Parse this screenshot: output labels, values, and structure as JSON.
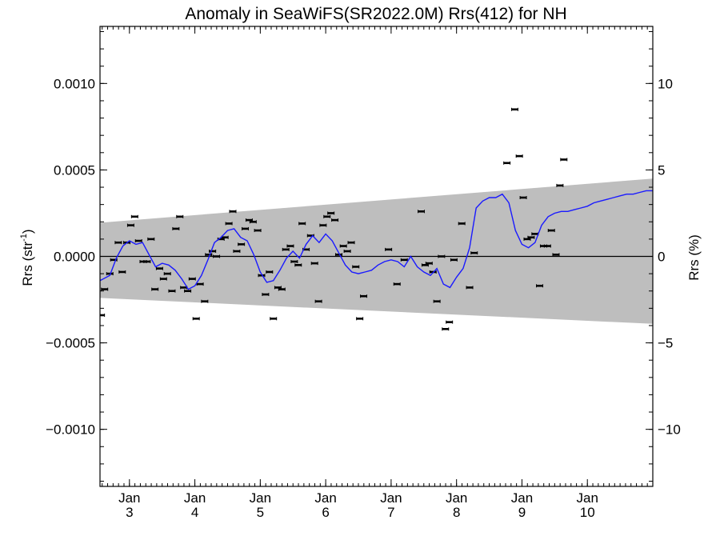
{
  "chart_data": {
    "type": "scatter",
    "title": "Anomaly in SeaWiFS(SR2022.0M) Rrs(412) for NH",
    "ylabel_left": "Rrs (str",
    "ylabel_left_sup": "-1",
    "ylabel_left_end": ")",
    "ylabel_right": "Rrs (%)",
    "x_ticks": [
      {
        "month": "Jan",
        "year": "3",
        "x": 3
      },
      {
        "month": "Jan",
        "year": "4",
        "x": 4
      },
      {
        "month": "Jan",
        "year": "5",
        "x": 5
      },
      {
        "month": "Jan",
        "year": "6",
        "x": 6
      },
      {
        "month": "Jan",
        "year": "7",
        "x": 7
      },
      {
        "month": "Jan",
        "year": "8",
        "x": 8
      },
      {
        "month": "Jan",
        "year": "9",
        "x": 9
      },
      {
        "month": "Jan",
        "year": "10",
        "x": 10
      }
    ],
    "xlim": [
      2.55,
      11.0
    ],
    "ylim_left": [
      -0.00133,
      0.00133
    ],
    "ylim_right": [
      -13.3,
      13.3
    ],
    "y_ticks_left": [
      {
        "v": 0.001,
        "label": "0.0010"
      },
      {
        "v": 0.0005,
        "label": "0.0005"
      },
      {
        "v": 0.0,
        "label": "0.0000"
      },
      {
        "v": -0.0005,
        "label": "−0.0005"
      },
      {
        "v": -0.001,
        "label": "−0.0010"
      }
    ],
    "y_ticks_right": [
      {
        "v": 10,
        "label": "10"
      },
      {
        "v": 5,
        "label": "5"
      },
      {
        "v": 0,
        "label": "0"
      },
      {
        "v": -5,
        "label": "−5"
      },
      {
        "v": -10,
        "label": "−10"
      }
    ],
    "band": {
      "color": "#bebebe",
      "upper": [
        [
          2.55,
          0.000195
        ],
        [
          11.0,
          0.00045
        ]
      ],
      "lower": [
        [
          2.55,
          -0.00024
        ],
        [
          11.0,
          -0.00039
        ]
      ]
    },
    "zero_line": 0,
    "series": [
      {
        "kind": "points",
        "color": "#000000",
        "points": [
          [
            2.57,
            -0.00034
          ],
          [
            2.62,
            -0.00019
          ],
          [
            2.7,
            -0.0001
          ],
          [
            2.76,
            -2e-05
          ],
          [
            2.83,
            8e-05
          ],
          [
            2.89,
            -9e-05
          ],
          [
            2.96,
            8e-05
          ],
          [
            3.02,
            0.00018
          ],
          [
            3.08,
            0.00023
          ],
          [
            3.14,
            9e-05
          ],
          [
            3.21,
            -3e-05
          ],
          [
            3.27,
            -3e-05
          ],
          [
            3.33,
            0.0001
          ],
          [
            3.39,
            -0.00019
          ],
          [
            3.46,
            -7e-05
          ],
          [
            3.52,
            -0.00013
          ],
          [
            3.58,
            -0.0001
          ],
          [
            3.65,
            -0.0002
          ],
          [
            3.71,
            0.00016
          ],
          [
            3.77,
            0.00023
          ],
          [
            3.83,
            -0.00018
          ],
          [
            3.89,
            -0.0002
          ],
          [
            3.96,
            -0.00013
          ],
          [
            4.02,
            -0.00036
          ],
          [
            4.08,
            -0.00016
          ],
          [
            4.15,
            -0.00026
          ],
          [
            4.21,
            1e-05
          ],
          [
            4.27,
            3e-05
          ],
          [
            4.33,
            0.0
          ],
          [
            4.4,
            0.0001
          ],
          [
            4.46,
            0.00011
          ],
          [
            4.52,
            0.00019
          ],
          [
            4.58,
            0.00026
          ],
          [
            4.64,
            3e-05
          ],
          [
            4.71,
            7e-05
          ],
          [
            4.77,
            0.00016
          ],
          [
            4.83,
            0.00021
          ],
          [
            4.89,
            0.0002
          ],
          [
            4.96,
            0.00015
          ],
          [
            5.02,
            -0.00011
          ],
          [
            5.08,
            -0.00022
          ],
          [
            5.14,
            -9e-05
          ],
          [
            5.2,
            -0.00036
          ],
          [
            5.27,
            -0.00018
          ],
          [
            5.33,
            -0.00019
          ],
          [
            5.39,
            4e-05
          ],
          [
            5.46,
            6e-05
          ],
          [
            5.52,
            -3e-05
          ],
          [
            5.58,
            -5e-05
          ],
          [
            5.64,
            0.00019
          ],
          [
            5.7,
            4e-05
          ],
          [
            5.77,
            0.00012
          ],
          [
            5.83,
            -4e-05
          ],
          [
            5.89,
            -0.00026
          ],
          [
            5.96,
            0.00018
          ],
          [
            6.02,
            0.00023
          ],
          [
            6.08,
            0.00025
          ],
          [
            6.14,
            0.00021
          ],
          [
            6.2,
            1e-05
          ],
          [
            6.27,
            6e-05
          ],
          [
            6.33,
            3e-05
          ],
          [
            6.39,
            8e-05
          ],
          [
            6.46,
            -6e-05
          ],
          [
            6.52,
            -0.00036
          ],
          [
            6.58,
            -0.00023
          ],
          [
            6.96,
            4e-05
          ],
          [
            7.09,
            -0.00016
          ],
          [
            7.2,
            -2e-05
          ],
          [
            7.46,
            0.00026
          ],
          [
            7.52,
            -5e-05
          ],
          [
            7.58,
            -4e-05
          ],
          [
            7.64,
            -9e-05
          ],
          [
            7.7,
            -0.00026
          ],
          [
            7.77,
            0.0
          ],
          [
            7.83,
            -0.00042
          ],
          [
            7.89,
            -0.00038
          ],
          [
            7.96,
            -2e-05
          ],
          [
            8.08,
            0.00019
          ],
          [
            8.2,
            -0.00018
          ],
          [
            8.27,
            2e-05
          ],
          [
            8.77,
            0.00054
          ],
          [
            8.89,
            0.00085
          ],
          [
            8.96,
            0.00058
          ],
          [
            9.02,
            0.00034
          ],
          [
            9.08,
            0.0001
          ],
          [
            9.14,
            0.00011
          ],
          [
            9.2,
            0.00013
          ],
          [
            9.27,
            -0.00017
          ],
          [
            9.33,
            6e-05
          ],
          [
            9.39,
            6e-05
          ],
          [
            9.45,
            0.00015
          ],
          [
            9.52,
            1e-05
          ],
          [
            9.58,
            0.00041
          ],
          [
            9.64,
            0.00056
          ]
        ]
      },
      {
        "kind": "line",
        "color": "#1a1aff",
        "points": [
          [
            2.55,
            -0.00014
          ],
          [
            2.7,
            -0.00011
          ],
          [
            2.8,
            -1e-05
          ],
          [
            2.9,
            6e-05
          ],
          [
            3.0,
            9e-05
          ],
          [
            3.1,
            7e-05
          ],
          [
            3.2,
            8e-05
          ],
          [
            3.3,
            1e-05
          ],
          [
            3.4,
            -6e-05
          ],
          [
            3.5,
            -4e-05
          ],
          [
            3.6,
            -5e-05
          ],
          [
            3.7,
            -8e-05
          ],
          [
            3.8,
            -0.00013
          ],
          [
            3.9,
            -0.00019
          ],
          [
            4.0,
            -0.00017
          ],
          [
            4.1,
            -0.00011
          ],
          [
            4.2,
            -2e-05
          ],
          [
            4.3,
            8e-05
          ],
          [
            4.4,
            0.00011
          ],
          [
            4.5,
            0.00015
          ],
          [
            4.6,
            0.00016
          ],
          [
            4.7,
            0.00011
          ],
          [
            4.8,
            9e-05
          ],
          [
            4.9,
            1e-05
          ],
          [
            5.0,
            -9e-05
          ],
          [
            5.1,
            -0.00015
          ],
          [
            5.2,
            -0.00014
          ],
          [
            5.3,
            -8e-05
          ],
          [
            5.4,
            -1e-05
          ],
          [
            5.5,
            3e-05
          ],
          [
            5.6,
            -1e-05
          ],
          [
            5.7,
            7e-05
          ],
          [
            5.8,
            0.00012
          ],
          [
            5.9,
            8e-05
          ],
          [
            6.0,
            0.00013
          ],
          [
            6.1,
            9e-05
          ],
          [
            6.2,
            2e-05
          ],
          [
            6.3,
            -5e-05
          ],
          [
            6.4,
            -9e-05
          ],
          [
            6.5,
            -0.0001
          ],
          [
            6.6,
            -9e-05
          ],
          [
            6.7,
            -8e-05
          ],
          [
            6.8,
            -5e-05
          ],
          [
            6.9,
            -3e-05
          ],
          [
            7.0,
            -2e-05
          ],
          [
            7.1,
            -3e-05
          ],
          [
            7.2,
            -6e-05
          ],
          [
            7.3,
            0.0
          ],
          [
            7.4,
            -6e-05
          ],
          [
            7.5,
            -9e-05
          ],
          [
            7.6,
            -0.00011
          ],
          [
            7.7,
            -7e-05
          ],
          [
            7.8,
            -0.00016
          ],
          [
            7.9,
            -0.00018
          ],
          [
            8.0,
            -0.00012
          ],
          [
            8.1,
            -7e-05
          ],
          [
            8.2,
            5e-05
          ],
          [
            8.3,
            0.00028
          ],
          [
            8.4,
            0.00032
          ],
          [
            8.5,
            0.00034
          ],
          [
            8.6,
            0.00034
          ],
          [
            8.7,
            0.00036
          ],
          [
            8.8,
            0.00031
          ],
          [
            8.9,
            0.00015
          ],
          [
            9.0,
            7e-05
          ],
          [
            9.1,
            5e-05
          ],
          [
            9.2,
            8e-05
          ],
          [
            9.3,
            0.00018
          ],
          [
            9.4,
            0.00023
          ],
          [
            9.5,
            0.00025
          ],
          [
            9.6,
            0.00026
          ],
          [
            9.7,
            0.00026
          ],
          [
            9.8,
            0.00027
          ],
          [
            9.9,
            0.00028
          ],
          [
            10.0,
            0.00029
          ],
          [
            10.1,
            0.00031
          ],
          [
            10.2,
            0.00032
          ],
          [
            10.3,
            0.00033
          ],
          [
            10.4,
            0.00034
          ],
          [
            10.5,
            0.00035
          ],
          [
            10.6,
            0.00036
          ],
          [
            10.7,
            0.00036
          ],
          [
            10.8,
            0.00037
          ],
          [
            10.9,
            0.00038
          ],
          [
            11.0,
            0.00038
          ]
        ]
      }
    ],
    "grid": false,
    "legend": "none"
  }
}
